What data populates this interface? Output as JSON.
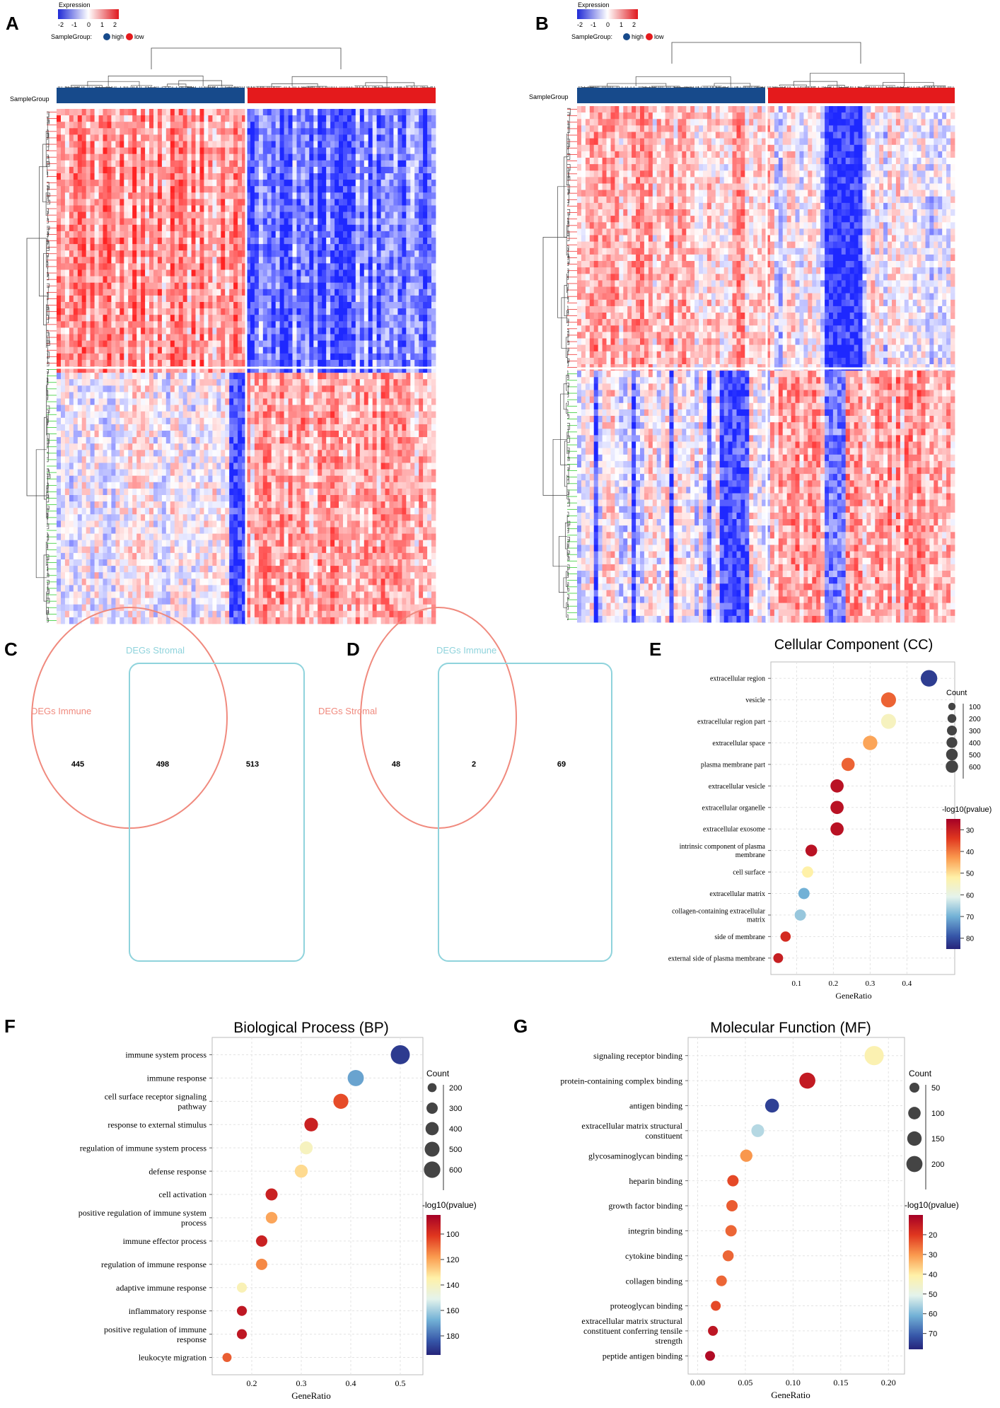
{
  "panels": {
    "A": "A",
    "B": "B",
    "C": "C",
    "D": "D",
    "E": "E",
    "F": "F",
    "G": "G"
  },
  "heatmap_legend": {
    "title": "Expression",
    "ticks": [
      "-2",
      "-1",
      "0",
      "1",
      "2"
    ],
    "sample_group_label": "SampleGroup:",
    "high": "high",
    "low": "low",
    "row_label": "SampleGroup"
  },
  "venn": [
    {
      "left_label": "DEGs Immune",
      "right_label": "DEGs Stromal",
      "left_only": "445",
      "both": "498",
      "right_only": "513"
    },
    {
      "left_label": "DEGs Stromal",
      "right_label": "DEGs Immune",
      "left_only": "48",
      "both": "2",
      "right_only": "69"
    }
  ],
  "chart_data": [
    {
      "type": "scatter",
      "title": "Cellular Component (CC)",
      "xlabel": "GeneRatio",
      "xlim": [
        0.03,
        0.48
      ],
      "xticks": [
        "0.1",
        "0.2",
        "0.3",
        "0.4"
      ],
      "xtick_values": [
        0.1,
        0.2,
        0.3,
        0.4
      ],
      "size_legend_title": "Count",
      "size_legend": [
        100,
        200,
        300,
        400,
        500,
        600
      ],
      "color_legend_title": "-log10(pvalue)",
      "color_legend": [
        30,
        40,
        50,
        60,
        70,
        80
      ],
      "color_range": [
        25,
        85
      ],
      "count_range": [
        50,
        650
      ],
      "terms": [
        {
          "label": [
            "extracellular region"
          ],
          "x": 0.46,
          "count": 600,
          "logp": 82
        },
        {
          "label": [
            "vesicle"
          ],
          "x": 0.35,
          "count": 450,
          "logp": 38
        },
        {
          "label": [
            "extracellular region part"
          ],
          "x": 0.35,
          "count": 450,
          "logp": 55
        },
        {
          "label": [
            "extracellular space"
          ],
          "x": 0.3,
          "count": 400,
          "logp": 44
        },
        {
          "label": [
            "plasma membrane part"
          ],
          "x": 0.24,
          "count": 300,
          "logp": 38
        },
        {
          "label": [
            "extracellular vesicle"
          ],
          "x": 0.21,
          "count": 300,
          "logp": 28
        },
        {
          "label": [
            "extracellular organelle"
          ],
          "x": 0.21,
          "count": 300,
          "logp": 28
        },
        {
          "label": [
            "extracellular exosome"
          ],
          "x": 0.21,
          "count": 300,
          "logp": 28
        },
        {
          "label": [
            "intrinsic component of plasma",
            "membrane"
          ],
          "x": 0.14,
          "count": 200,
          "logp": 28
        },
        {
          "label": [
            "cell surface"
          ],
          "x": 0.13,
          "count": 170,
          "logp": 52
        },
        {
          "label": [
            "extracellular matrix"
          ],
          "x": 0.12,
          "count": 170,
          "logp": 70
        },
        {
          "label": [
            "collagen-containing extracellular",
            "matrix"
          ],
          "x": 0.11,
          "count": 170,
          "logp": 67
        },
        {
          "label": [
            "side of membrane"
          ],
          "x": 0.07,
          "count": 120,
          "logp": 32
        },
        {
          "label": [
            "external side of plasma membrane"
          ],
          "x": 0.05,
          "count": 100,
          "logp": 30
        }
      ]
    },
    {
      "type": "scatter",
      "title": "Biological Process (BP)",
      "xlabel": "GeneRatio",
      "xlim": [
        0.12,
        0.52
      ],
      "xticks": [
        "0.2",
        "0.3",
        "0.4",
        "0.5"
      ],
      "xtick_values": [
        0.2,
        0.3,
        0.4,
        0.5
      ],
      "size_legend_title": "Count",
      "size_legend": [
        200,
        300,
        400,
        500,
        600
      ],
      "color_legend_title": "-log10(pvalue)",
      "color_legend": [
        100,
        120,
        140,
        160,
        180
      ],
      "color_range": [
        85,
        195
      ],
      "count_range": [
        150,
        700
      ],
      "terms": [
        {
          "label": [
            "immune system process"
          ],
          "x": 0.5,
          "count": 650,
          "logp": 190
        },
        {
          "label": [
            "immune response"
          ],
          "x": 0.41,
          "count": 480,
          "logp": 170
        },
        {
          "label": [
            "cell surface receptor signaling",
            "pathway"
          ],
          "x": 0.38,
          "count": 420,
          "logp": 105
        },
        {
          "label": [
            "response to external stimulus"
          ],
          "x": 0.32,
          "count": 350,
          "logp": 95
        },
        {
          "label": [
            "regulation of immune system process"
          ],
          "x": 0.31,
          "count": 320,
          "logp": 140
        },
        {
          "label": [
            "defense response"
          ],
          "x": 0.3,
          "count": 320,
          "logp": 130
        },
        {
          "label": [
            "cell activation"
          ],
          "x": 0.24,
          "count": 280,
          "logp": 95
        },
        {
          "label": [
            "positive regulation of immune system",
            "process"
          ],
          "x": 0.24,
          "count": 260,
          "logp": 120
        },
        {
          "label": [
            "immune effector process"
          ],
          "x": 0.22,
          "count": 250,
          "logp": 95
        },
        {
          "label": [
            "regulation of immune response"
          ],
          "x": 0.22,
          "count": 250,
          "logp": 115
        },
        {
          "label": [
            "adaptive immune response"
          ],
          "x": 0.18,
          "count": 200,
          "logp": 138
        },
        {
          "label": [
            "inflammatory response"
          ],
          "x": 0.18,
          "count": 200,
          "logp": 92
        },
        {
          "label": [
            "positive regulation of immune",
            "response"
          ],
          "x": 0.18,
          "count": 200,
          "logp": 92
        },
        {
          "label": [
            "leukocyte migration"
          ],
          "x": 0.15,
          "count": 170,
          "logp": 108
        }
      ]
    },
    {
      "type": "scatter",
      "title": "Molecular Function (MF)",
      "xlabel": "GeneRatio",
      "xlim": [
        -0.01,
        0.205
      ],
      "xticks": [
        "0.00",
        "0.05",
        "0.10",
        "0.15",
        "0.20"
      ],
      "xtick_values": [
        0,
        0.05,
        0.1,
        0.15,
        0.2
      ],
      "size_legend_title": "Count",
      "size_legend": [
        50,
        100,
        150,
        200
      ],
      "color_legend_title": "-log10(pvalue)",
      "color_legend": [
        20,
        30,
        40,
        50,
        60,
        70
      ],
      "color_range": [
        10,
        78
      ],
      "count_range": [
        20,
        260
      ],
      "terms": [
        {
          "label": [
            "signaling receptor binding"
          ],
          "x": 0.185,
          "count": 240,
          "logp": 42
        },
        {
          "label": [
            "protein-containing complex binding"
          ],
          "x": 0.115,
          "count": 150,
          "logp": 15
        },
        {
          "label": [
            "antigen binding"
          ],
          "x": 0.078,
          "count": 100,
          "logp": 74
        },
        {
          "label": [
            "extracellular matrix structural",
            "constituent"
          ],
          "x": 0.063,
          "count": 80,
          "logp": 55
        },
        {
          "label": [
            "glycosaminoglycan binding"
          ],
          "x": 0.051,
          "count": 70,
          "logp": 30
        },
        {
          "label": [
            "heparin binding"
          ],
          "x": 0.037,
          "count": 55,
          "logp": 22
        },
        {
          "label": [
            "growth factor binding"
          ],
          "x": 0.036,
          "count": 55,
          "logp": 24
        },
        {
          "label": [
            "integrin binding"
          ],
          "x": 0.035,
          "count": 55,
          "logp": 25
        },
        {
          "label": [
            "cytokine binding"
          ],
          "x": 0.032,
          "count": 50,
          "logp": 25
        },
        {
          "label": [
            "collagen binding"
          ],
          "x": 0.025,
          "count": 45,
          "logp": 25
        },
        {
          "label": [
            "proteoglycan binding"
          ],
          "x": 0.019,
          "count": 35,
          "logp": 22
        },
        {
          "label": [
            "extracellular matrix structural",
            "constituent conferring tensile",
            "strength"
          ],
          "x": 0.016,
          "count": 35,
          "logp": 14
        },
        {
          "label": [
            "peptide antigen binding"
          ],
          "x": 0.013,
          "count": 35,
          "logp": 12
        }
      ]
    }
  ]
}
